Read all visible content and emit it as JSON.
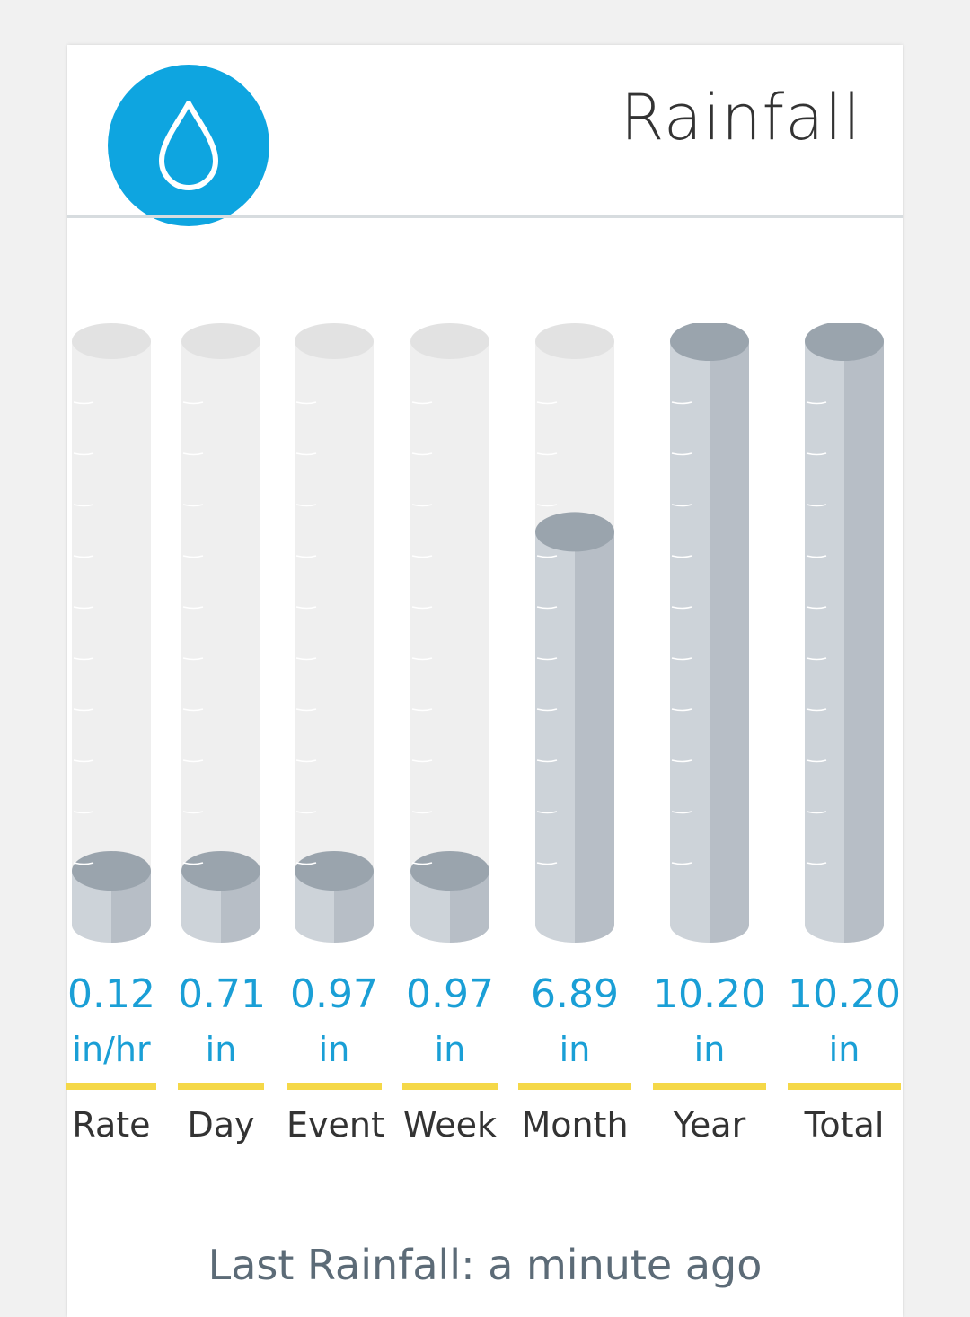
{
  "header": {
    "title": "Rainfall",
    "icon": "water-drop-icon",
    "icon_bg": "#0ea5e0"
  },
  "colors": {
    "value_text": "#1a9fd6",
    "accent_bar": "#f5d848",
    "tube_empty": "#efefef",
    "tube_empty_top": "#e2e2e2",
    "fill_light": "#cdd3d9",
    "fill_dark": "#b7bec6",
    "fill_top": "#9aa4ad"
  },
  "gauges": [
    {
      "key": "rate",
      "value": "0.12",
      "unit": "in/hr",
      "label": "Rate",
      "fill": 0.0
    },
    {
      "key": "day",
      "value": "0.71",
      "unit": "in",
      "label": "Day",
      "fill": 0.0
    },
    {
      "key": "event",
      "value": "0.97",
      "unit": "in",
      "label": "Event",
      "fill": 0.0
    },
    {
      "key": "week",
      "value": "0.97",
      "unit": "in",
      "label": "Week",
      "fill": 0.0
    },
    {
      "key": "month",
      "value": "6.89",
      "unit": "in",
      "label": "Month",
      "fill": 0.64
    },
    {
      "key": "year",
      "value": "10.20",
      "unit": "in",
      "label": "Year",
      "fill": 1.0
    },
    {
      "key": "total",
      "value": "10.20",
      "unit": "in",
      "label": "Total",
      "fill": 1.0
    }
  ],
  "footer": {
    "last_rainfall": "Last Rainfall: a minute ago"
  }
}
